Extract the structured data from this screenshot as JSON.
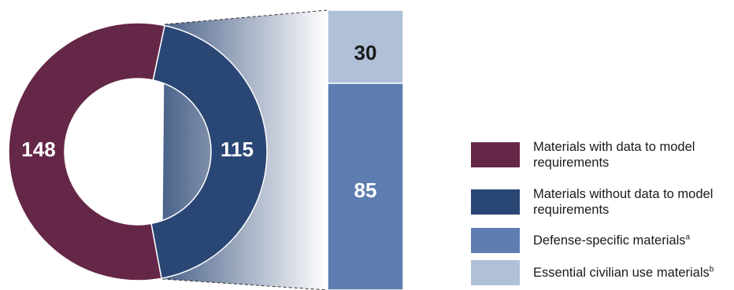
{
  "chart_data": {
    "type": "pie",
    "title": "",
    "donut": {
      "series": [
        {
          "name": "Materials with data to model requirements",
          "value": 148,
          "label": "148",
          "color": "#652747"
        },
        {
          "name": "Materials without data to model requirements",
          "value": 115,
          "label": "115",
          "color": "#2a4674"
        }
      ]
    },
    "breakdown_bar": {
      "of_series": "Materials without data to model requirements",
      "total": 115,
      "segments": [
        {
          "name": "Defense-specific materials",
          "value": 85,
          "label": "85",
          "color": "#5e7db1"
        },
        {
          "name": "Essential civilian use materials",
          "value": 30,
          "label": "30",
          "color": "#b0c0d8"
        }
      ]
    }
  },
  "legend": {
    "items": [
      {
        "line1": "Materials with data to model",
        "line2": "requirements",
        "sup": "",
        "color": "#652747"
      },
      {
        "line1": "Materials without data to model",
        "line2": "requirements",
        "sup": "",
        "color": "#2a4674"
      },
      {
        "line1": "Defense-specific materials",
        "line2": "",
        "sup": "a",
        "color": "#5e7db1"
      },
      {
        "line1": "Essential civilian use materials",
        "line2": "",
        "sup": "b",
        "color": "#b0c0d8"
      }
    ]
  }
}
